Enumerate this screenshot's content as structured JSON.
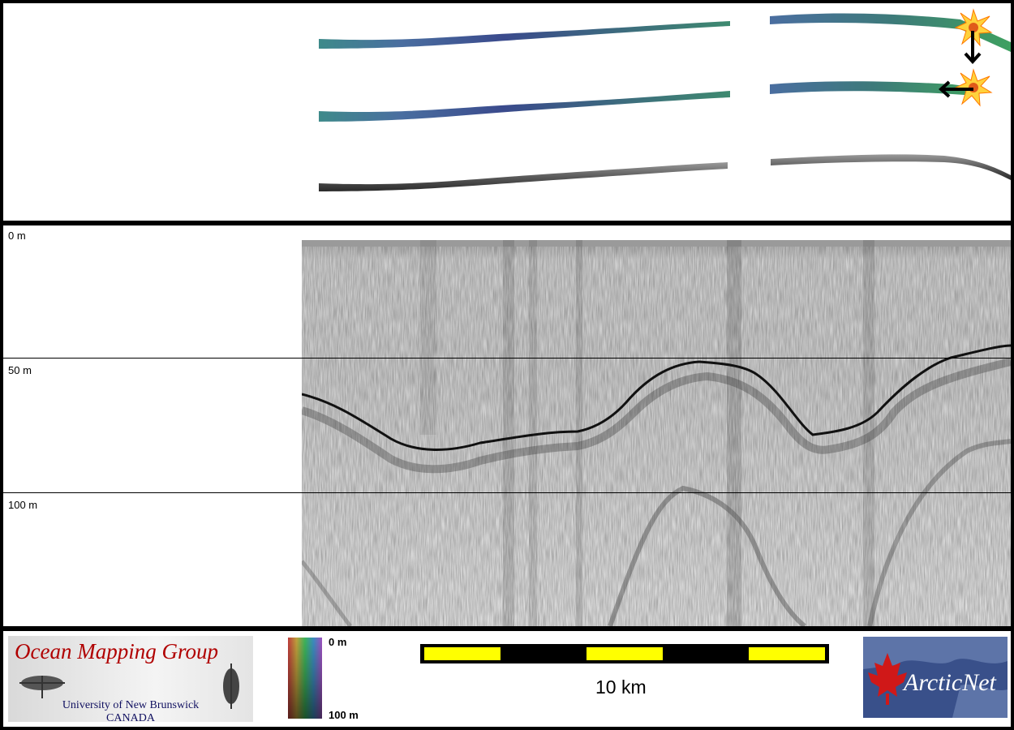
{
  "profile": {
    "depth_labels": [
      "0 m",
      "50 m",
      "100 m"
    ]
  },
  "legend": {
    "logo_left": {
      "title": "Ocean Mapping Group",
      "university": "University of New Brunswick",
      "country": "CANADA"
    },
    "colorbar": {
      "top_label": "0 m",
      "bottom_label": "100 m"
    },
    "scalebar": {
      "label": "10 km"
    },
    "logo_right": {
      "text": "ArcticNet"
    }
  },
  "colors": {
    "panel_background": "#ffffff",
    "frame": "#000000",
    "scalebar_fill": "#ffff00",
    "logo_red": "#b00000",
    "logo_blue": "#101060",
    "arcticnet_bg": "#39508a"
  }
}
